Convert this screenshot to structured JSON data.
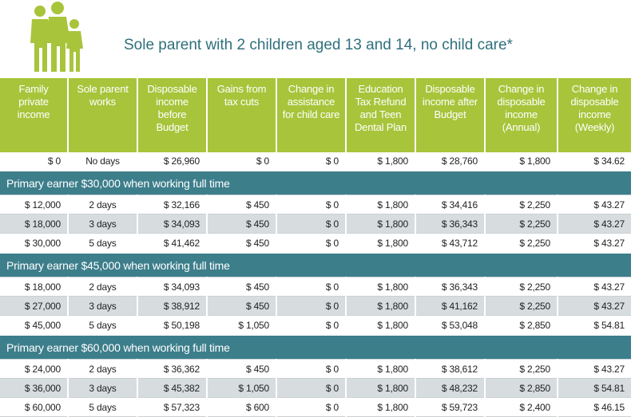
{
  "header": {
    "title": "Sole parent with 2 children aged 13 and 14, no child care*"
  },
  "table": {
    "columns": [
      "Family private income",
      "Sole parent works",
      "Disposable income before Budget",
      "Gains from tax cuts",
      "Change in assistance for child care",
      "Education Tax Refund and Teen Dental Plan",
      "Disposable income after Budget",
      "Change in disposable income (Annual)",
      "Change in disposable income (Weekly)"
    ],
    "base_row": [
      "$ 0",
      "No days",
      "$ 26,960",
      "$ 0",
      "$ 0",
      "$ 1,800",
      "$ 28,760",
      "$ 1,800",
      "$ 34.62"
    ],
    "sections": [
      {
        "heading": "Primary earner $30,000 when working full time",
        "rows": [
          [
            "$ 12,000",
            "2 days",
            "$ 32,166",
            "$ 450",
            "$ 0",
            "$ 1,800",
            "$ 34,416",
            "$ 2,250",
            "$ 43.27"
          ],
          [
            "$ 18,000",
            "3 days",
            "$ 34,093",
            "$ 450",
            "$ 0",
            "$ 1,800",
            "$ 36,343",
            "$ 2,250",
            "$ 43.27"
          ],
          [
            "$ 30,000",
            "5 days",
            "$ 41,462",
            "$ 450",
            "$ 0",
            "$ 1,800",
            "$ 43,712",
            "$ 2,250",
            "$ 43.27"
          ]
        ]
      },
      {
        "heading": "Primary earner $45,000 when working full time",
        "rows": [
          [
            "$ 18,000",
            "2 days",
            "$ 34,093",
            "$ 450",
            "$ 0",
            "$ 1,800",
            "$ 36,343",
            "$ 2,250",
            "$ 43.27"
          ],
          [
            "$ 27,000",
            "3 days",
            "$ 38,912",
            "$ 450",
            "$ 0",
            "$ 1,800",
            "$ 41,162",
            "$ 2,250",
            "$ 43.27"
          ],
          [
            "$ 45,000",
            "5 days",
            "$ 50,198",
            "$ 1,050",
            "$ 0",
            "$ 1,800",
            "$ 53,048",
            "$ 2,850",
            "$ 54.81"
          ]
        ]
      },
      {
        "heading": "Primary earner $60,000 when working full time",
        "rows": [
          [
            "$ 24,000",
            "2 days",
            "$ 36,362",
            "$ 450",
            "$ 0",
            "$ 1,800",
            "$ 38,612",
            "$ 2,250",
            "$ 43.27"
          ],
          [
            "$ 36,000",
            "3 days",
            "$ 45,382",
            "$ 1,050",
            "$ 0",
            "$ 1,800",
            "$ 48,232",
            "$ 2,850",
            "$ 54.81"
          ],
          [
            "$ 60,000",
            "5 days",
            "$ 57,323",
            "$ 600",
            "$ 0",
            "$ 1,800",
            "$ 59,723",
            "$ 2,400",
            "$ 46.15"
          ]
        ]
      }
    ]
  }
}
